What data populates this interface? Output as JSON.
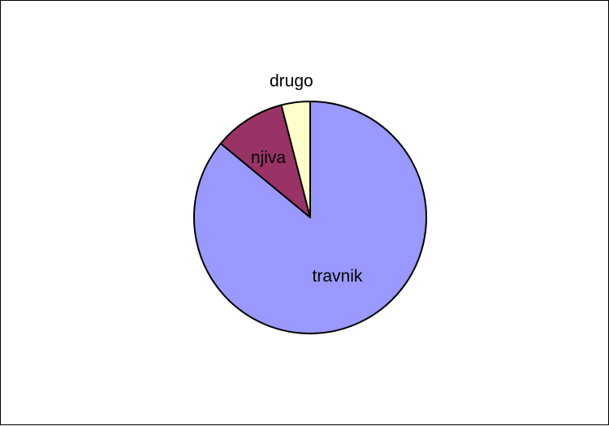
{
  "chart_data": {
    "type": "pie",
    "title": "",
    "categories": [
      "travnik",
      "njiva",
      "drugo"
    ],
    "values": [
      86,
      10,
      4
    ],
    "colors": [
      "#9999ff",
      "#993366",
      "#ffffcc"
    ],
    "legend": "none",
    "start_angle": "12 o'clock, clockwise"
  }
}
